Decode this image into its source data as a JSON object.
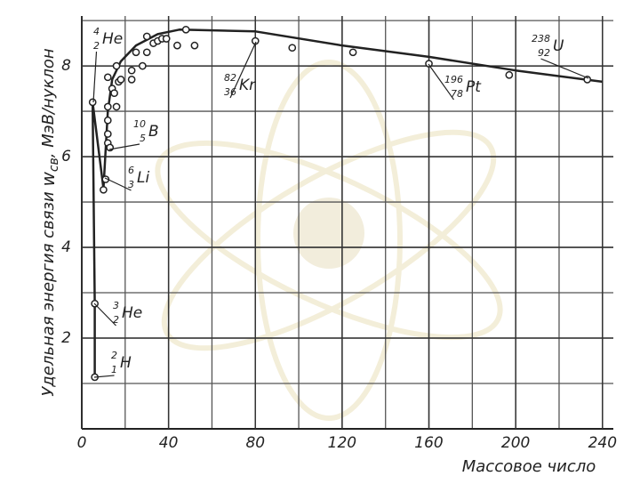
{
  "chart_data": {
    "type": "scatter",
    "y_label": {
      "before": "Удельная энергия связи ",
      "symbol": "w",
      "subscript": "св",
      "after": ", МэВ/нуклон"
    },
    "x_label": "Массовое число",
    "x": [
      6,
      6,
      5,
      10,
      11,
      12,
      12,
      13,
      12,
      12,
      12,
      14,
      15,
      16,
      16,
      17,
      18,
      23,
      23,
      25,
      28,
      30,
      33,
      30,
      35,
      37,
      39,
      44,
      48,
      52,
      80,
      97,
      125,
      160,
      197,
      233
    ],
    "values": [
      1.14,
      2.76,
      7.2,
      5.27,
      5.5,
      6.5,
      6.3,
      6.2,
      6.8,
      7.1,
      7.75,
      7.5,
      7.4,
      7.1,
      8.0,
      7.65,
      7.7,
      7.7,
      7.9,
      8.3,
      8.0,
      8.3,
      8.5,
      8.65,
      8.55,
      8.6,
      8.6,
      8.45,
      8.8,
      8.45,
      8.55,
      8.4,
      8.3,
      8.05,
      7.8,
      7.7
    ],
    "curve": {
      "x": [
        6,
        6,
        5,
        10,
        12,
        14,
        18,
        25,
        35,
        45,
        80,
        120,
        160,
        200,
        240
      ],
      "values": [
        1.14,
        2.76,
        7.2,
        5.3,
        7.0,
        7.7,
        8.1,
        8.45,
        8.7,
        8.8,
        8.76,
        8.45,
        8.2,
        7.9,
        7.65
      ]
    },
    "annotations": [
      {
        "mass": "4",
        "charge": "2",
        "symbol": "He"
      },
      {
        "mass": "6",
        "charge": "3",
        "symbol": "Li"
      },
      {
        "mass": "10",
        "charge": "5",
        "symbol": "B"
      },
      {
        "mass": "3",
        "charge": "2",
        "symbol": "He"
      },
      {
        "mass": "2",
        "charge": "1",
        "symbol": "H"
      },
      {
        "mass": "82",
        "charge": "36",
        "symbol": "Kr"
      },
      {
        "mass": "196",
        "charge": "78",
        "symbol": "Pt"
      },
      {
        "mass": "238",
        "charge": "92",
        "symbol": "U"
      }
    ],
    "xlim": [
      0,
      245
    ],
    "ylim": [
      0,
      9.1
    ],
    "xticks": [
      0,
      40,
      80,
      120,
      160,
      200,
      240
    ],
    "yticks": [
      2,
      4,
      6,
      8
    ],
    "grid": true,
    "grid_subdivisions": 2,
    "color": "#222"
  }
}
